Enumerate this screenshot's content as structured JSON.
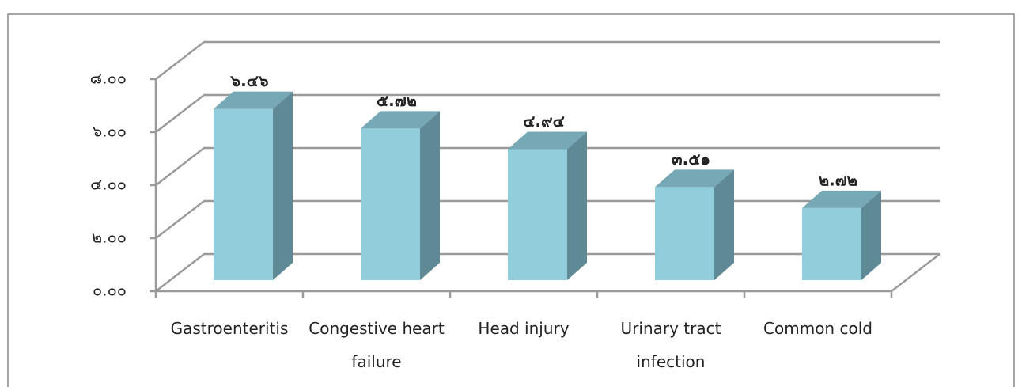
{
  "chart_data": {
    "type": "bar3d",
    "categories": [
      "Gastroenteritis",
      "Congestive heart failure",
      "Head injury",
      "Urinary tract infection",
      "Common cold"
    ],
    "values": [
      6.46,
      5.72,
      4.94,
      3.51,
      2.72
    ],
    "value_labels": [
      "๖.๔๖",
      "๕.๗๒",
      "๔.๙๔",
      "๓.๕๑",
      "๒.๗๒"
    ],
    "color": "#92cddc",
    "ylim": [
      0,
      8
    ],
    "yticks": [
      {
        "value": 0,
        "label": "๐.๐๐"
      },
      {
        "value": 2,
        "label": "๒.๐๐"
      },
      {
        "value": 4,
        "label": "๔.๐๐"
      },
      {
        "value": 6,
        "label": "๖.๐๐"
      },
      {
        "value": 8,
        "label": "๘.๐๐"
      }
    ],
    "grid": true
  }
}
